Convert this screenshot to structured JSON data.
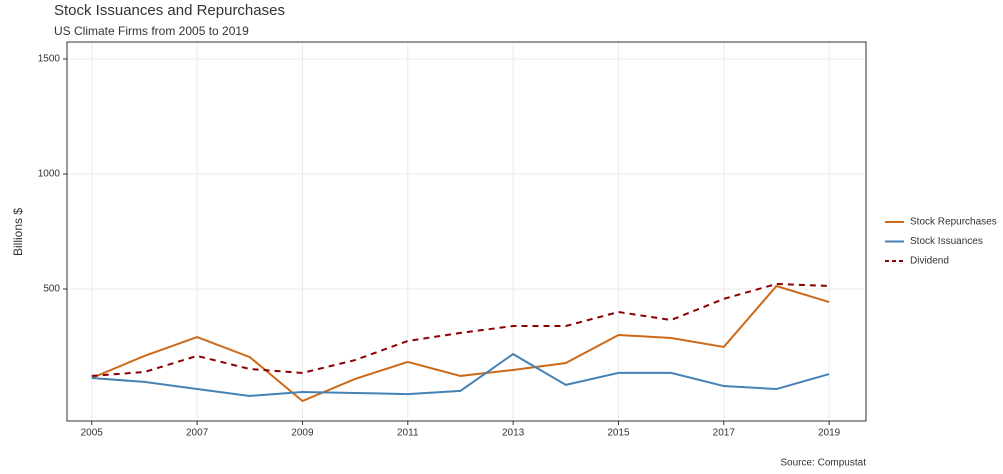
{
  "chart_data": {
    "type": "line",
    "title": "Stock Issuances and Repurchases",
    "subtitle": "US Climate Firms from 2005 to 2019",
    "y_label": "Billions $",
    "caption": "Source: Compustat",
    "x": [
      2005,
      2006,
      2007,
      2008,
      2009,
      2010,
      2011,
      2012,
      2013,
      2014,
      2015,
      2016,
      2017,
      2018,
      2019
    ],
    "series": [
      {
        "name": "Stock Repurchases",
        "color": "#cc6a1a",
        "dash": "solid",
        "values": [
          113,
          209,
          291,
          204,
          13,
          109,
          183,
          122,
          148,
          178,
          300,
          287,
          248,
          513,
          443
        ]
      },
      {
        "name": "Stock Issuances",
        "color": "#4682b4",
        "dash": "solid",
        "values": [
          113,
          96,
          65,
          35,
          52,
          48,
          43,
          57,
          217,
          83,
          135,
          135,
          78,
          65,
          130
        ]
      },
      {
        "name": "Dividend",
        "color": "#8b0000",
        "dash": "dashed",
        "values": [
          122,
          139,
          209,
          152,
          135,
          191,
          274,
          309,
          339,
          339,
          400,
          365,
          457,
          522,
          513
        ]
      }
    ],
    "xlim": [
      2004.53,
      2019.7
    ],
    "xticks": [
      2005,
      2007,
      2009,
      2011,
      2013,
      2015,
      2017,
      2019
    ],
    "ylim": [
      -74,
      1574
    ],
    "yticks": [
      500,
      1000,
      1500
    ],
    "grid": true,
    "legend": "right"
  }
}
